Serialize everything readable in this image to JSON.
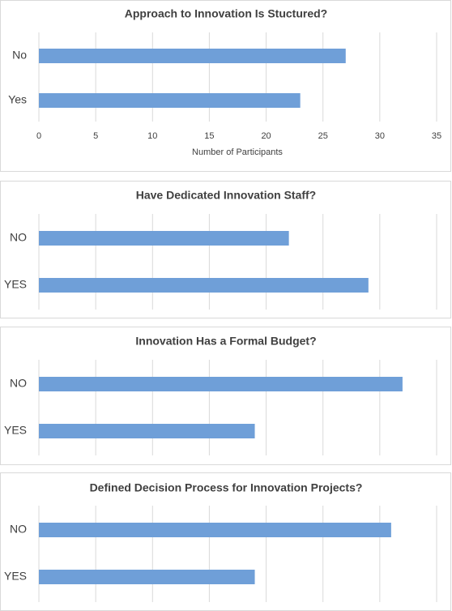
{
  "chart_data": [
    {
      "type": "bar",
      "orientation": "horizontal",
      "title": "Approach to Innovation Is Stuctured?",
      "xlabel": "Number of Participants",
      "categories": [
        "No",
        "Yes"
      ],
      "values": [
        27,
        23
      ],
      "color": "#6f9fd8",
      "xlim": [
        0,
        35
      ],
      "xticks": [
        0,
        5,
        10,
        15,
        20,
        25,
        30,
        35
      ],
      "show_tick_labels": true,
      "grid": true
    },
    {
      "type": "bar",
      "orientation": "horizontal",
      "title": "Have Dedicated Innovation Staff?",
      "categories": [
        "NO",
        "YES"
      ],
      "values": [
        22,
        29
      ],
      "color": "#6f9fd8",
      "xlim": [
        0,
        35
      ],
      "xticks": [
        0,
        5,
        10,
        15,
        20,
        25,
        30,
        35
      ],
      "show_tick_labels": false,
      "grid": true
    },
    {
      "type": "bar",
      "orientation": "horizontal",
      "title": "Innovation Has a Formal Budget?",
      "categories": [
        "NO",
        "YES"
      ],
      "values": [
        32,
        19
      ],
      "color": "#6f9fd8",
      "xlim": [
        0,
        35
      ],
      "xticks": [
        0,
        5,
        10,
        15,
        20,
        25,
        30,
        35
      ],
      "show_tick_labels": false,
      "grid": true
    },
    {
      "type": "bar",
      "orientation": "horizontal",
      "title": "Defined Decision Process for Innovation Projects?",
      "categories": [
        "NO",
        "YES"
      ],
      "values": [
        31,
        19
      ],
      "color": "#6f9fd8",
      "xlim": [
        0,
        35
      ],
      "xticks": [
        0,
        5,
        10,
        15,
        20,
        25,
        30,
        35
      ],
      "show_tick_labels": false,
      "grid": true
    }
  ]
}
